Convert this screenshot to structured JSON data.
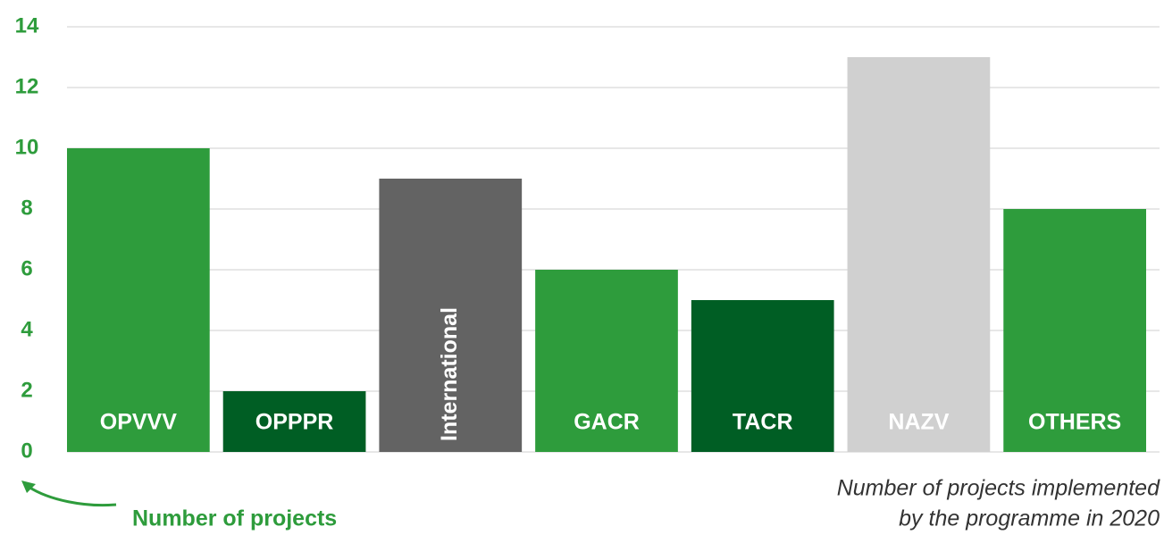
{
  "chart_data": {
    "type": "bar",
    "categories": [
      "OPVVV",
      "OPPPR",
      "International",
      "GACR",
      "TACR",
      "NAZV",
      "OTHERS"
    ],
    "values": [
      10,
      2,
      9,
      6,
      5,
      13,
      8
    ],
    "colors": [
      "#2e9c3c",
      "#005e24",
      "#636363",
      "#2e9c3c",
      "#005e24",
      "#d0d0d0",
      "#2e9c3c"
    ],
    "ylim": [
      0,
      14
    ],
    "yticks": [
      0,
      2,
      4,
      6,
      8,
      10,
      12,
      14
    ],
    "grid": true,
    "y_label": "Number of projects",
    "note": [
      "Number of projects implemented",
      "by the programme in 2020"
    ]
  }
}
